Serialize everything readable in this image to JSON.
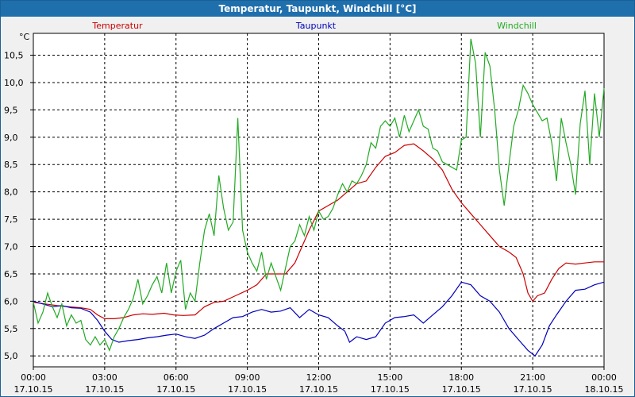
{
  "window": {
    "title": "Temperatur, Taupunkt, Windchill [°C]"
  },
  "colors": {
    "temperatur": "#cc0000",
    "taupunkt": "#0000bb",
    "windchill": "#22aa22",
    "titlebar": "#1f6fad",
    "grid": "#000000"
  },
  "chart_data": {
    "type": "line",
    "title": "Temperatur, Taupunkt, Windchill [°C]",
    "unit": "°C",
    "ylim": [
      4.8,
      10.9
    ],
    "xlim": [
      0,
      24
    ],
    "grid": true,
    "legend": "top",
    "yticks": [
      {
        "v": 5.0,
        "label": "5,0"
      },
      {
        "v": 5.5,
        "label": "5,5"
      },
      {
        "v": 6.0,
        "label": "6,0"
      },
      {
        "v": 6.5,
        "label": "6,5"
      },
      {
        "v": 7.0,
        "label": "7,0"
      },
      {
        "v": 7.5,
        "label": "7,5"
      },
      {
        "v": 8.0,
        "label": "8,0"
      },
      {
        "v": 8.5,
        "label": "8,5"
      },
      {
        "v": 9.0,
        "label": "9,0"
      },
      {
        "v": 9.5,
        "label": "9,5"
      },
      {
        "v": 10.0,
        "label": "10,0"
      },
      {
        "v": 10.5,
        "label": "10,5"
      }
    ],
    "xticks": [
      {
        "h": 0,
        "time": "00:00",
        "date": "17.10.15"
      },
      {
        "h": 3,
        "time": "03:00",
        "date": "17.10.15"
      },
      {
        "h": 6,
        "time": "06:00",
        "date": "17.10.15"
      },
      {
        "h": 9,
        "time": "09:00",
        "date": "17.10.15"
      },
      {
        "h": 12,
        "time": "12:00",
        "date": "17.10.15"
      },
      {
        "h": 15,
        "time": "15:00",
        "date": "17.10.15"
      },
      {
        "h": 18,
        "time": "18:00",
        "date": "17.10.15"
      },
      {
        "h": 21,
        "time": "21:00",
        "date": "17.10.15"
      },
      {
        "h": 24,
        "time": "00:00",
        "date": "18.10.15"
      }
    ],
    "series": [
      {
        "name": "Temperatur",
        "color": "#cc0000",
        "points": [
          [
            0,
            5.98
          ],
          [
            0.5,
            5.95
          ],
          [
            1,
            5.92
          ],
          [
            1.5,
            5.9
          ],
          [
            2,
            5.88
          ],
          [
            2.4,
            5.85
          ],
          [
            2.7,
            5.75
          ],
          [
            3,
            5.68
          ],
          [
            3.4,
            5.68
          ],
          [
            3.8,
            5.7
          ],
          [
            4.2,
            5.75
          ],
          [
            4.6,
            5.77
          ],
          [
            5,
            5.76
          ],
          [
            5.5,
            5.78
          ],
          [
            5.9,
            5.75
          ],
          [
            6.3,
            5.74
          ],
          [
            6.8,
            5.75
          ],
          [
            7.2,
            5.9
          ],
          [
            7.6,
            5.98
          ],
          [
            8,
            6.0
          ],
          [
            8.5,
            6.1
          ],
          [
            9,
            6.2
          ],
          [
            9.4,
            6.3
          ],
          [
            9.8,
            6.5
          ],
          [
            10.2,
            6.5
          ],
          [
            10.6,
            6.5
          ],
          [
            11,
            6.7
          ],
          [
            11.3,
            7.0
          ],
          [
            11.6,
            7.3
          ],
          [
            12,
            7.65
          ],
          [
            12.4,
            7.75
          ],
          [
            12.8,
            7.85
          ],
          [
            13.2,
            8.0
          ],
          [
            13.6,
            8.15
          ],
          [
            14,
            8.2
          ],
          [
            14.4,
            8.45
          ],
          [
            14.8,
            8.65
          ],
          [
            15.2,
            8.72
          ],
          [
            15.6,
            8.85
          ],
          [
            16,
            8.88
          ],
          [
            16.4,
            8.75
          ],
          [
            16.8,
            8.6
          ],
          [
            17.2,
            8.4
          ],
          [
            17.6,
            8.05
          ],
          [
            18,
            7.8
          ],
          [
            18.4,
            7.6
          ],
          [
            18.8,
            7.4
          ],
          [
            19.2,
            7.2
          ],
          [
            19.6,
            7.0
          ],
          [
            20,
            6.9
          ],
          [
            20.3,
            6.8
          ],
          [
            20.6,
            6.5
          ],
          [
            20.8,
            6.15
          ],
          [
            21,
            6.0
          ],
          [
            21.2,
            6.1
          ],
          [
            21.5,
            6.15
          ],
          [
            21.8,
            6.4
          ],
          [
            22.1,
            6.6
          ],
          [
            22.4,
            6.7
          ],
          [
            22.8,
            6.68
          ],
          [
            23.2,
            6.7
          ],
          [
            23.6,
            6.72
          ],
          [
            24,
            6.72
          ]
        ]
      },
      {
        "name": "Taupunkt",
        "color": "#0000bb",
        "points": [
          [
            0,
            6.0
          ],
          [
            0.4,
            5.95
          ],
          [
            0.8,
            5.9
          ],
          [
            1.2,
            5.92
          ],
          [
            1.6,
            5.88
          ],
          [
            2,
            5.87
          ],
          [
            2.4,
            5.8
          ],
          [
            2.7,
            5.65
          ],
          [
            3,
            5.45
          ],
          [
            3.3,
            5.3
          ],
          [
            3.6,
            5.25
          ],
          [
            4,
            5.28
          ],
          [
            4.4,
            5.3
          ],
          [
            4.8,
            5.33
          ],
          [
            5.2,
            5.35
          ],
          [
            5.6,
            5.38
          ],
          [
            6,
            5.4
          ],
          [
            6.4,
            5.35
          ],
          [
            6.8,
            5.32
          ],
          [
            7.2,
            5.38
          ],
          [
            7.6,
            5.5
          ],
          [
            8,
            5.6
          ],
          [
            8.4,
            5.7
          ],
          [
            8.8,
            5.72
          ],
          [
            9.2,
            5.8
          ],
          [
            9.6,
            5.85
          ],
          [
            10,
            5.8
          ],
          [
            10.4,
            5.82
          ],
          [
            10.8,
            5.88
          ],
          [
            11.2,
            5.7
          ],
          [
            11.6,
            5.85
          ],
          [
            12,
            5.75
          ],
          [
            12.4,
            5.7
          ],
          [
            12.8,
            5.55
          ],
          [
            13.1,
            5.45
          ],
          [
            13.3,
            5.25
          ],
          [
            13.6,
            5.35
          ],
          [
            14,
            5.3
          ],
          [
            14.4,
            5.35
          ],
          [
            14.8,
            5.6
          ],
          [
            15.2,
            5.7
          ],
          [
            15.6,
            5.72
          ],
          [
            16,
            5.75
          ],
          [
            16.4,
            5.6
          ],
          [
            16.8,
            5.75
          ],
          [
            17.2,
            5.9
          ],
          [
            17.6,
            6.1
          ],
          [
            18,
            6.35
          ],
          [
            18.4,
            6.3
          ],
          [
            18.8,
            6.1
          ],
          [
            19.2,
            6.0
          ],
          [
            19.6,
            5.8
          ],
          [
            20,
            5.5
          ],
          [
            20.4,
            5.3
          ],
          [
            20.8,
            5.1
          ],
          [
            21.1,
            5.0
          ],
          [
            21.4,
            5.2
          ],
          [
            21.7,
            5.55
          ],
          [
            22,
            5.75
          ],
          [
            22.4,
            6.0
          ],
          [
            22.8,
            6.2
          ],
          [
            23.2,
            6.22
          ],
          [
            23.6,
            6.3
          ],
          [
            24,
            6.35
          ]
        ]
      },
      {
        "name": "Windchill",
        "color": "#22aa22",
        "points": [
          [
            0,
            5.98
          ],
          [
            0.2,
            5.6
          ],
          [
            0.4,
            5.8
          ],
          [
            0.6,
            6.15
          ],
          [
            0.8,
            5.9
          ],
          [
            1,
            5.7
          ],
          [
            1.2,
            5.95
          ],
          [
            1.4,
            5.55
          ],
          [
            1.6,
            5.75
          ],
          [
            1.8,
            5.6
          ],
          [
            2,
            5.65
          ],
          [
            2.2,
            5.3
          ],
          [
            2.4,
            5.2
          ],
          [
            2.6,
            5.35
          ],
          [
            2.8,
            5.2
          ],
          [
            3,
            5.3
          ],
          [
            3.2,
            5.1
          ],
          [
            3.4,
            5.35
          ],
          [
            3.6,
            5.5
          ],
          [
            3.8,
            5.7
          ],
          [
            4,
            5.85
          ],
          [
            4.2,
            6.05
          ],
          [
            4.4,
            6.4
          ],
          [
            4.6,
            5.95
          ],
          [
            4.8,
            6.1
          ],
          [
            5,
            6.3
          ],
          [
            5.2,
            6.45
          ],
          [
            5.4,
            6.15
          ],
          [
            5.6,
            6.7
          ],
          [
            5.8,
            6.15
          ],
          [
            6,
            6.55
          ],
          [
            6.2,
            6.75
          ],
          [
            6.4,
            5.85
          ],
          [
            6.6,
            6.15
          ],
          [
            6.8,
            6.0
          ],
          [
            7,
            6.7
          ],
          [
            7.2,
            7.3
          ],
          [
            7.4,
            7.6
          ],
          [
            7.6,
            7.2
          ],
          [
            7.8,
            8.3
          ],
          [
            8,
            7.7
          ],
          [
            8.2,
            7.3
          ],
          [
            8.4,
            7.45
          ],
          [
            8.6,
            9.35
          ],
          [
            8.8,
            7.3
          ],
          [
            9,
            6.9
          ],
          [
            9.2,
            6.7
          ],
          [
            9.4,
            6.55
          ],
          [
            9.6,
            6.9
          ],
          [
            9.8,
            6.4
          ],
          [
            10,
            6.7
          ],
          [
            10.2,
            6.45
          ],
          [
            10.4,
            6.2
          ],
          [
            10.6,
            6.6
          ],
          [
            10.8,
            7.0
          ],
          [
            11,
            7.1
          ],
          [
            11.2,
            7.4
          ],
          [
            11.4,
            7.2
          ],
          [
            11.6,
            7.55
          ],
          [
            11.8,
            7.3
          ],
          [
            12,
            7.65
          ],
          [
            12.2,
            7.5
          ],
          [
            12.4,
            7.55
          ],
          [
            12.6,
            7.7
          ],
          [
            12.8,
            7.95
          ],
          [
            13,
            8.15
          ],
          [
            13.2,
            8.0
          ],
          [
            13.4,
            8.2
          ],
          [
            13.6,
            8.15
          ],
          [
            13.8,
            8.3
          ],
          [
            14,
            8.5
          ],
          [
            14.2,
            8.9
          ],
          [
            14.4,
            8.8
          ],
          [
            14.6,
            9.2
          ],
          [
            14.8,
            9.3
          ],
          [
            15,
            9.2
          ],
          [
            15.2,
            9.35
          ],
          [
            15.4,
            9.0
          ],
          [
            15.6,
            9.4
          ],
          [
            15.8,
            9.1
          ],
          [
            16,
            9.3
          ],
          [
            16.2,
            9.5
          ],
          [
            16.4,
            9.2
          ],
          [
            16.6,
            9.15
          ],
          [
            16.8,
            8.8
          ],
          [
            17,
            8.75
          ],
          [
            17.2,
            8.55
          ],
          [
            17.4,
            8.5
          ],
          [
            17.6,
            8.45
          ],
          [
            17.8,
            8.4
          ],
          [
            18,
            8.95
          ],
          [
            18.2,
            9.0
          ],
          [
            18.4,
            10.8
          ],
          [
            18.6,
            10.35
          ],
          [
            18.8,
            9.0
          ],
          [
            19,
            10.55
          ],
          [
            19.2,
            10.3
          ],
          [
            19.4,
            9.5
          ],
          [
            19.6,
            8.4
          ],
          [
            19.8,
            7.75
          ],
          [
            20,
            8.5
          ],
          [
            20.2,
            9.2
          ],
          [
            20.4,
            9.5
          ],
          [
            20.6,
            9.95
          ],
          [
            20.8,
            9.8
          ],
          [
            21,
            9.6
          ],
          [
            21.2,
            9.45
          ],
          [
            21.4,
            9.3
          ],
          [
            21.6,
            9.35
          ],
          [
            21.8,
            8.9
          ],
          [
            22,
            8.2
          ],
          [
            22.2,
            9.35
          ],
          [
            22.4,
            8.9
          ],
          [
            22.6,
            8.5
          ],
          [
            22.8,
            7.95
          ],
          [
            23,
            9.25
          ],
          [
            23.2,
            9.85
          ],
          [
            23.4,
            8.5
          ],
          [
            23.6,
            9.8
          ],
          [
            23.8,
            9.0
          ],
          [
            24,
            9.9
          ]
        ]
      }
    ]
  }
}
